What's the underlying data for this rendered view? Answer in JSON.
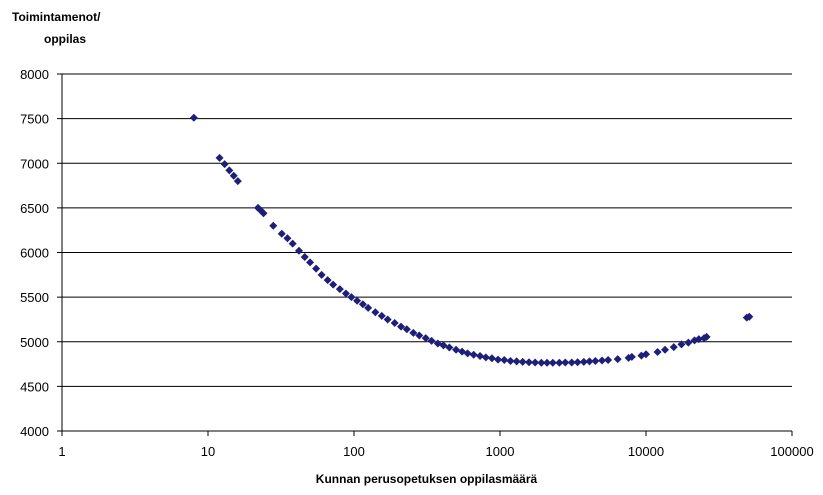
{
  "chart_data": {
    "type": "scatter",
    "title": "",
    "ylabel_lines": [
      "Toimintamenot/",
      "oppilas"
    ],
    "xlabel": "Kunnan perusopetuksen oppilasmäärä",
    "x_scale": "log",
    "xlim": [
      1,
      100000
    ],
    "ylim": [
      4000,
      8000
    ],
    "x_ticks": [
      "1",
      "10",
      "100",
      "1000",
      "10000",
      "100000"
    ],
    "y_ticks": [
      "4000",
      "4500",
      "5000",
      "5500",
      "6000",
      "6500",
      "7000",
      "7500",
      "8000"
    ],
    "grid": "horizontal",
    "marker": "diamond",
    "marker_color": "#1f1f7a",
    "x": [
      8,
      12,
      13,
      14,
      15,
      16,
      22,
      23,
      24,
      28,
      32,
      35,
      38,
      42,
      46,
      50,
      55,
      60,
      66,
      72,
      80,
      88,
      96,
      105,
      115,
      125,
      140,
      155,
      170,
      190,
      210,
      230,
      255,
      280,
      310,
      340,
      375,
      410,
      450,
      500,
      550,
      600,
      660,
      730,
      800,
      880,
      970,
      1070,
      1180,
      1300,
      1430,
      1580,
      1740,
      1920,
      2100,
      2300,
      2550,
      2800,
      3100,
      3400,
      3750,
      4100,
      4500,
      5000,
      5500,
      6400,
      7600,
      8000,
      9300,
      10000,
      12000,
      13500,
      15500,
      17500,
      19500,
      21500,
      23000,
      25000,
      26000,
      49000,
      51000
    ],
    "y": [
      7510,
      7060,
      6990,
      6920,
      6860,
      6800,
      6500,
      6470,
      6440,
      6300,
      6210,
      6160,
      6100,
      6020,
      5950,
      5890,
      5820,
      5750,
      5690,
      5640,
      5590,
      5540,
      5500,
      5460,
      5420,
      5380,
      5330,
      5290,
      5250,
      5210,
      5170,
      5140,
      5100,
      5070,
      5040,
      5010,
      4980,
      4960,
      4935,
      4910,
      4890,
      4870,
      4855,
      4840,
      4825,
      4815,
      4800,
      4795,
      4785,
      4780,
      4775,
      4770,
      4768,
      4765,
      4765,
      4765,
      4765,
      4767,
      4768,
      4770,
      4775,
      4780,
      4785,
      4790,
      4795,
      4805,
      4820,
      4830,
      4845,
      4860,
      4885,
      4910,
      4940,
      4970,
      4990,
      5015,
      5030,
      5040,
      5055,
      5270,
      5280
    ]
  }
}
